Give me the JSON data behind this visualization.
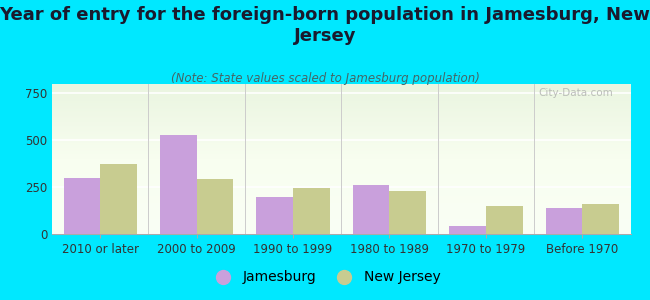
{
  "title": "Year of entry for the foreign-born population in Jamesburg, New\nJersey",
  "subtitle": "(Note: State values scaled to Jamesburg population)",
  "categories": [
    "2010 or later",
    "2000 to 2009",
    "1990 to 1999",
    "1980 to 1989",
    "1970 to 1979",
    "Before 1970"
  ],
  "jamesburg": [
    300,
    530,
    200,
    260,
    45,
    140
  ],
  "new_jersey": [
    375,
    295,
    245,
    230,
    150,
    160
  ],
  "jamesburg_color": "#c9a0dc",
  "new_jersey_color": "#c8cc90",
  "background_color": "#00e8ff",
  "ylim": [
    0,
    800
  ],
  "yticks": [
    0,
    250,
    500,
    750
  ],
  "bar_width": 0.38,
  "title_fontsize": 13,
  "subtitle_fontsize": 8.5,
  "tick_fontsize": 8.5,
  "legend_fontsize": 10,
  "watermark": "City-Data.com"
}
